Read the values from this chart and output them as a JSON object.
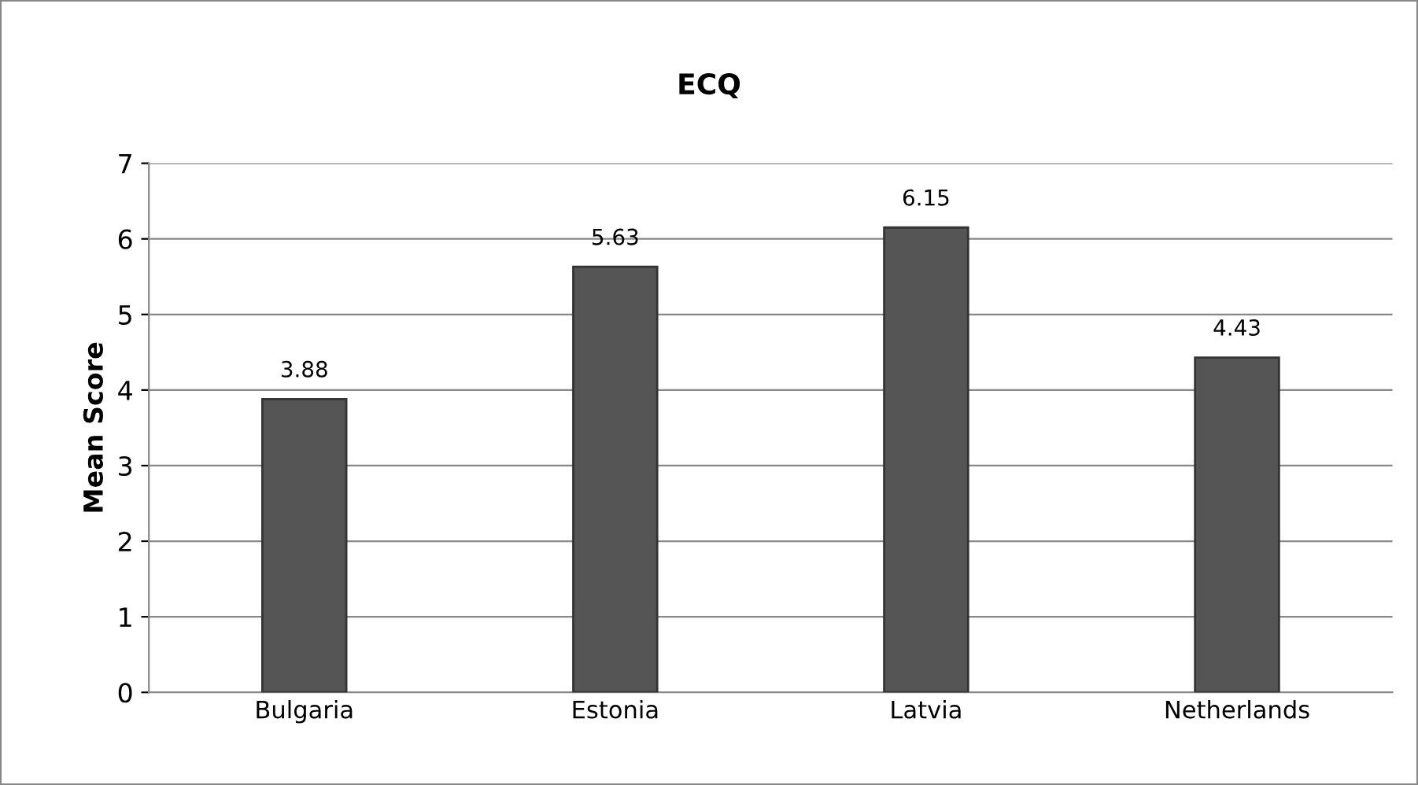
{
  "chart_data": {
    "type": "bar",
    "title": "ECQ",
    "ylabel": "Mean Score",
    "categories": [
      "Bulgaria",
      "Estonia",
      "Latvia",
      "Netherlands"
    ],
    "values": [
      3.88,
      5.63,
      6.15,
      4.43
    ],
    "color": "#555555",
    "ylim": [
      0,
      7
    ],
    "yticks": [
      0,
      1,
      2,
      3,
      4,
      5,
      6,
      7
    ],
    "grid": "y",
    "data_labels": true
  }
}
